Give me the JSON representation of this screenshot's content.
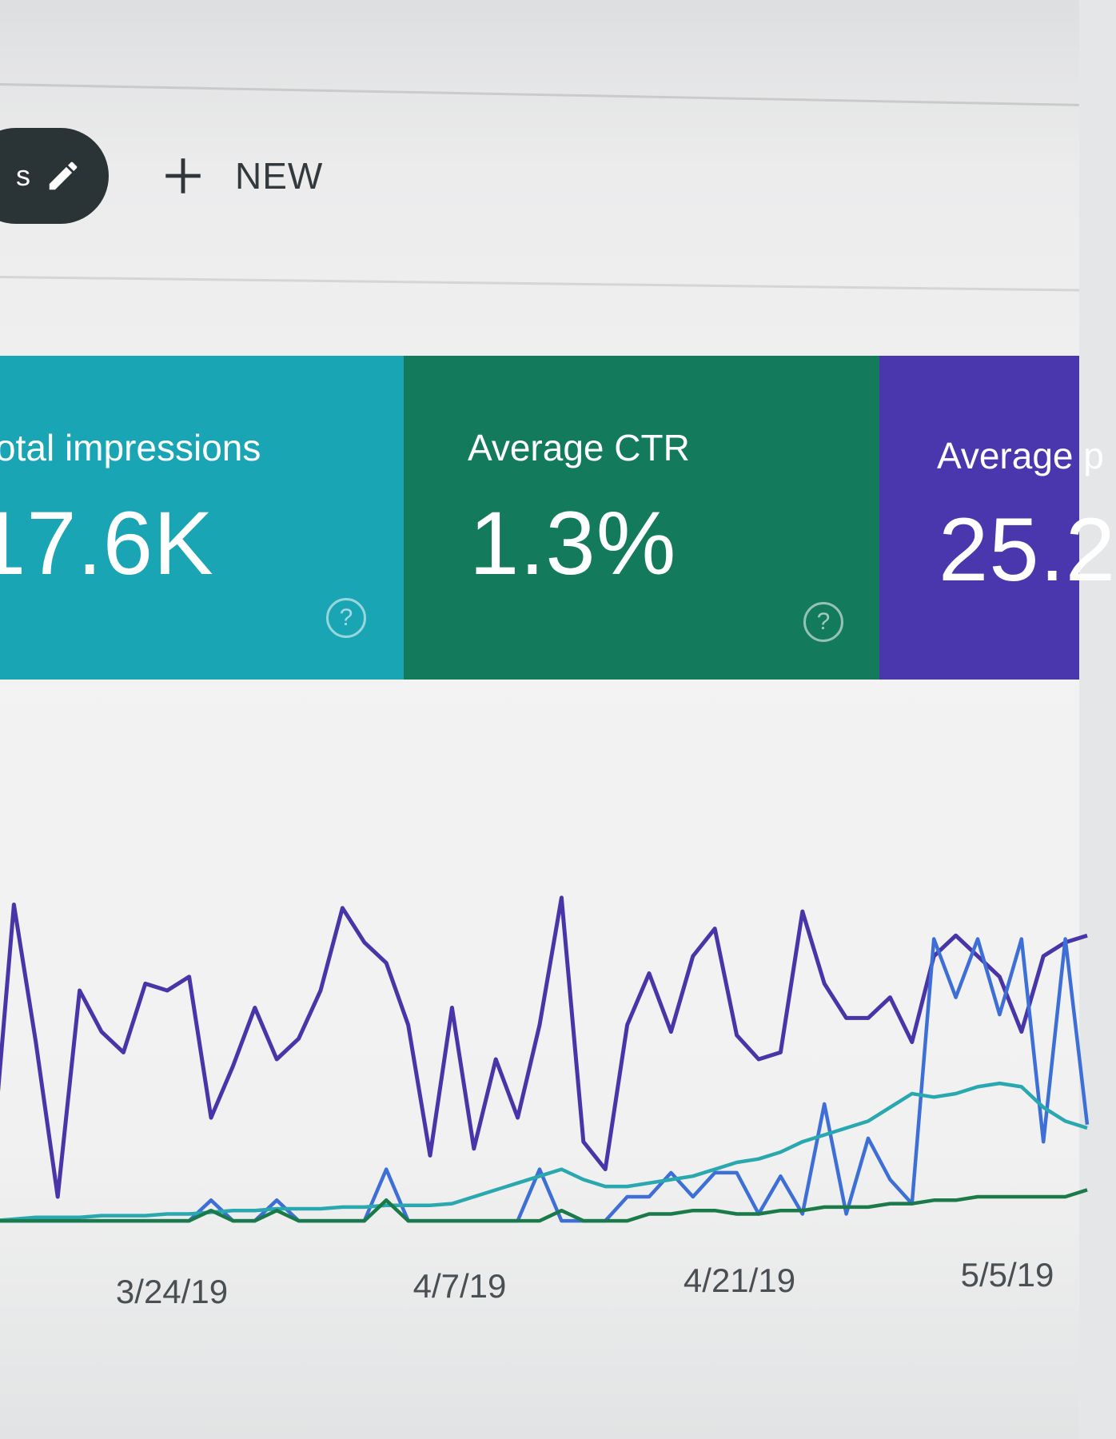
{
  "toolbar": {
    "chip_label": "s",
    "chip_icon": "pencil-icon",
    "new_icon": "plus-icon",
    "new_label": "NEW"
  },
  "cards": [
    {
      "label": "otal impressions",
      "value": "17.6K",
      "color": "#19a5b4",
      "help_icon": "help-circle-icon"
    },
    {
      "label": "Average CTR",
      "value": "1.3%",
      "color": "#137a5b",
      "help_icon": "help-circle-icon"
    },
    {
      "label": "Average p",
      "value": "25.2",
      "color": "#4a37ae"
    }
  ],
  "chart_data": {
    "type": "line",
    "x_tick_labels": [
      "3/24/19",
      "4/7/19",
      "4/21/19",
      "5/5/19"
    ],
    "grid": false,
    "ylim": [
      0,
      100
    ],
    "series": [
      {
        "color": "#4a35a8",
        "values": [
          20,
          95,
          55,
          10,
          70,
          58,
          52,
          72,
          70,
          74,
          33,
          48,
          65,
          50,
          56,
          70,
          94,
          84,
          78,
          60,
          22,
          65,
          24,
          50,
          33,
          60,
          97,
          26,
          18,
          60,
          75,
          58,
          80,
          88,
          57,
          50,
          52,
          93,
          72,
          62,
          62,
          68,
          55,
          80,
          86,
          80,
          74,
          58,
          80,
          84,
          86
        ]
      },
      {
        "color": "#3e6fd6",
        "values": [
          3,
          3,
          3,
          3,
          3,
          3,
          3,
          3,
          3,
          3,
          9,
          3,
          3,
          9,
          3,
          3,
          3,
          3,
          18,
          3,
          3,
          3,
          3,
          3,
          3,
          18,
          3,
          3,
          3,
          10,
          10,
          17,
          10,
          17,
          17,
          5,
          16,
          5,
          37,
          5,
          27,
          15,
          8,
          85,
          68,
          85,
          63,
          85,
          26,
          85,
          31
        ]
      },
      {
        "color": "#2aa8b0",
        "values": [
          3,
          3.5,
          4,
          4,
          4,
          4.5,
          4.5,
          4.5,
          5,
          5,
          5.5,
          6,
          6,
          6.5,
          6.5,
          6.5,
          7,
          7,
          7.5,
          7.5,
          7.5,
          8,
          10,
          12,
          14,
          16,
          18,
          15,
          13,
          13,
          14,
          15,
          16,
          18,
          20,
          21,
          23,
          26,
          28,
          30,
          32,
          36,
          40,
          39,
          40,
          42,
          43,
          42,
          36,
          32,
          30
        ]
      },
      {
        "color": "#1a7a4a",
        "values": [
          3,
          3,
          3,
          3,
          3,
          3,
          3,
          3,
          3,
          3,
          6,
          3,
          3,
          6,
          3,
          3,
          3,
          3,
          9,
          3,
          3,
          3,
          3,
          3,
          3,
          3,
          6,
          3,
          3,
          3,
          5,
          5,
          6,
          6,
          5,
          5,
          6,
          6,
          7,
          7,
          7,
          8,
          8,
          9,
          9,
          10,
          10,
          10,
          10,
          10,
          12
        ]
      }
    ]
  }
}
